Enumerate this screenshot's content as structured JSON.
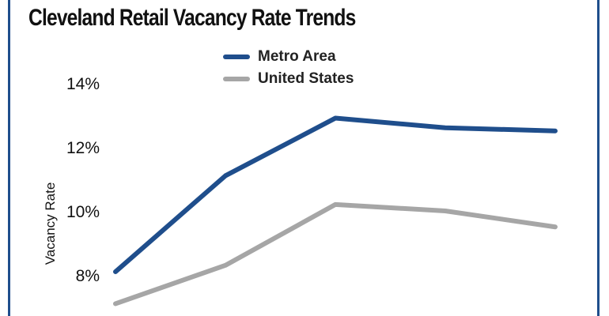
{
  "chart_data": {
    "type": "line",
    "title": "Cleveland Retail Vacancy Rate Trends",
    "ylabel": "Vacancy Rate",
    "xlabel": "",
    "ylim": [
      7.4,
      15
    ],
    "yticks": [
      "8%",
      "10%",
      "12%",
      "14%"
    ],
    "ytick_values": [
      8,
      10,
      12,
      14
    ],
    "x": [
      1,
      2,
      3,
      4,
      5
    ],
    "legend_position": "top",
    "series": [
      {
        "name": "Metro Area",
        "color": "#1f4e8c",
        "values": [
          8.1,
          11.1,
          12.9,
          12.6,
          12.5
        ]
      },
      {
        "name": "United States",
        "color": "#a6a6a6",
        "values": [
          7.1,
          8.3,
          10.2,
          10.0,
          9.5
        ]
      }
    ]
  }
}
